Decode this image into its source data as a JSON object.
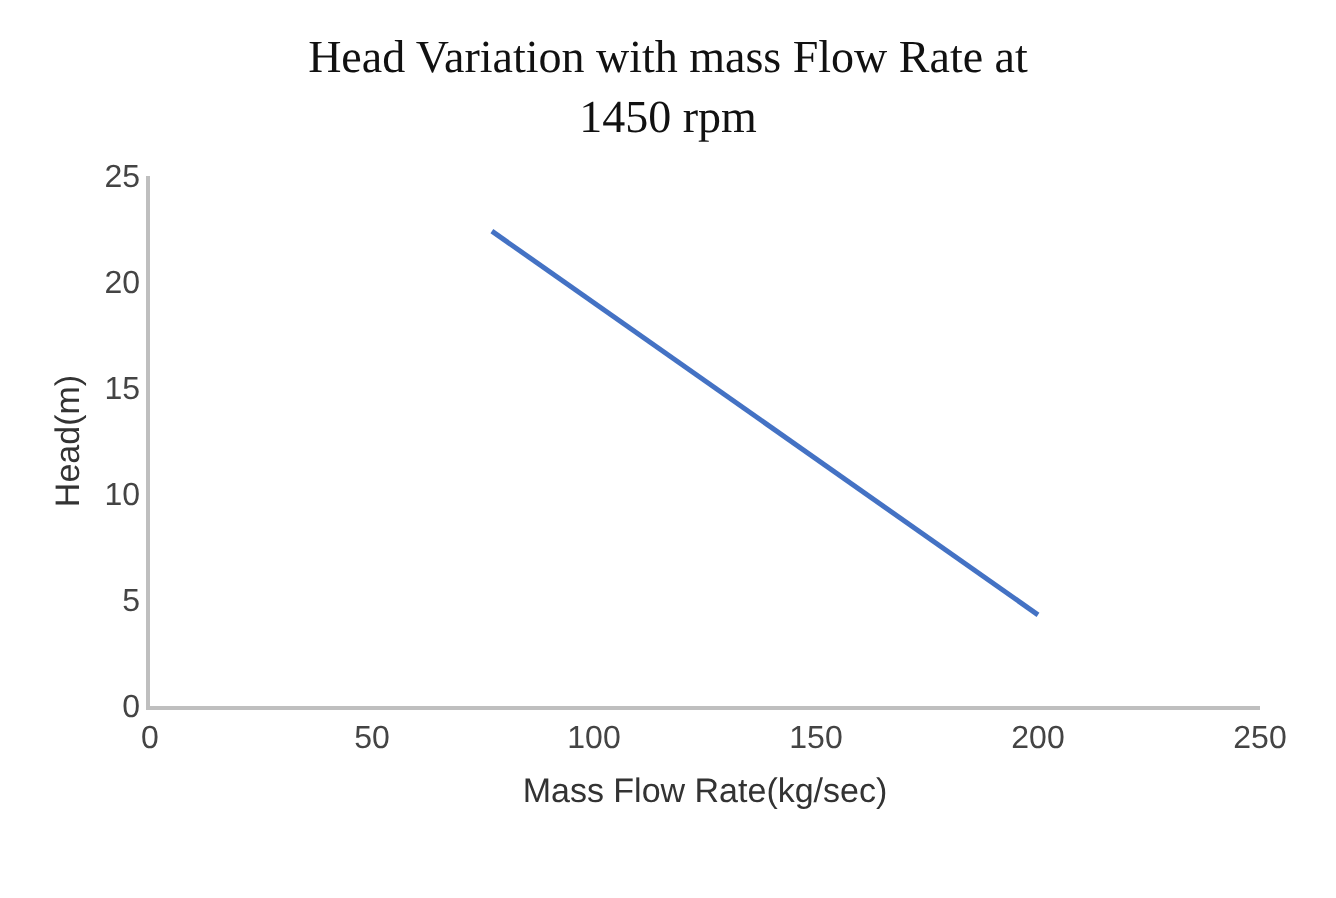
{
  "chart_data": {
    "type": "line",
    "title": "Head Variation with mass Flow Rate at\n1450 rpm",
    "xlabel": "Mass Flow Rate(kg/sec)",
    "ylabel": "Head(m)",
    "x": [
      77,
      200
    ],
    "series": [
      {
        "color": "#4472c4",
        "values": [
          22.4,
          4.3
        ]
      }
    ],
    "xlim": [
      0,
      250
    ],
    "xticks": [
      0,
      50,
      100,
      150,
      200,
      250
    ],
    "ylim": [
      0,
      25
    ],
    "yticks": [
      0,
      5,
      10,
      15,
      20,
      25
    ],
    "grid": false,
    "marker": "none",
    "line_style": "solid"
  }
}
